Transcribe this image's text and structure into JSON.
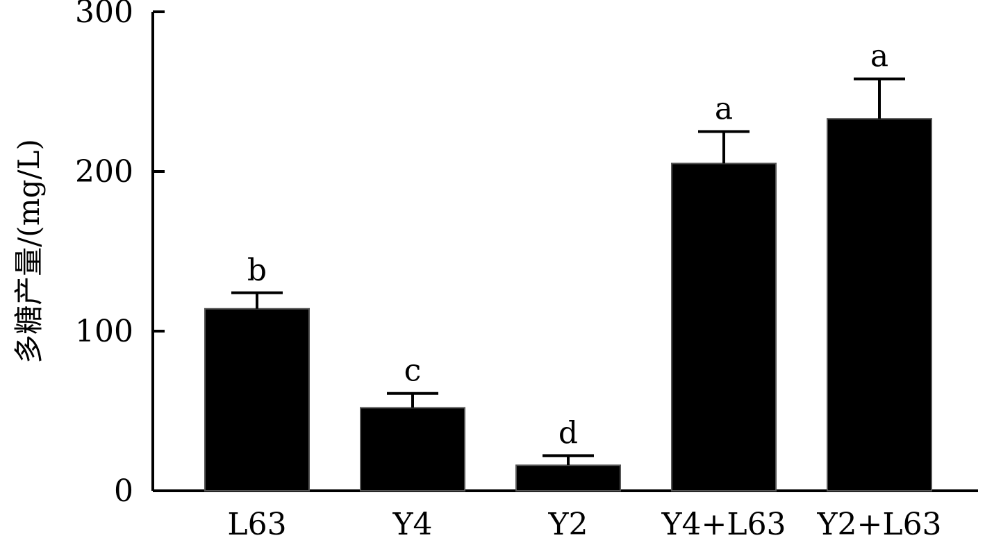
{
  "chart_data": {
    "type": "bar",
    "title": "",
    "xlabel": "",
    "ylabel": "多糖产量/(mg/L)",
    "ylim": [
      0,
      300
    ],
    "yticks": [
      0,
      100,
      200,
      300
    ],
    "yticks_text": [
      "0",
      "100",
      "200",
      "300"
    ],
    "grid": false,
    "legend": "none",
    "categories": [
      "L63",
      "Y4",
      "Y2",
      "Y4+L63",
      "Y2+L63"
    ],
    "values": [
      114,
      52,
      16,
      205,
      233
    ],
    "errors": [
      10,
      9,
      6,
      20,
      25
    ],
    "significance": [
      "b",
      "c",
      "d",
      "a",
      "a"
    ],
    "bar_color": "#000000"
  }
}
